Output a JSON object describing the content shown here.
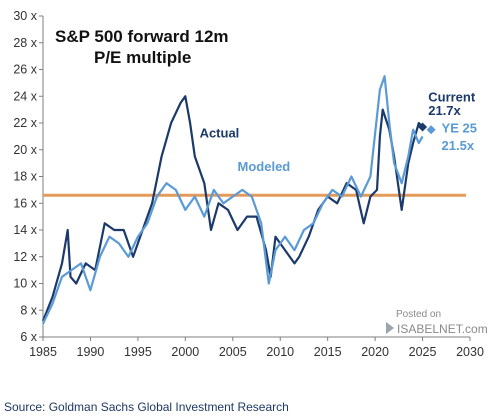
{
  "chart_data": {
    "type": "line",
    "title": [
      "S&P 500 forward 12m",
      "P/E multiple"
    ],
    "x_ticks": [
      "1985",
      "1990",
      "1995",
      "2000",
      "2005",
      "2010",
      "2015",
      "2020",
      "2025",
      "2030"
    ],
    "y_ticks": [
      "6 x",
      "8 x",
      "10 x",
      "12 x",
      "14 x",
      "16 x",
      "18 x",
      "20 x",
      "22 x",
      "24 x",
      "26 x",
      "28 x",
      "30 x"
    ],
    "xlim": [
      1985,
      2030
    ],
    "ylim": [
      6,
      30
    ],
    "grid": false,
    "horizontal_line": {
      "y": 16.6,
      "color": "#E39A5B"
    },
    "series": [
      {
        "name": "Actual",
        "color": "#1B3A6B",
        "points": [
          [
            1985.0,
            7.2
          ],
          [
            1986.0,
            9.0
          ],
          [
            1987.0,
            11.5
          ],
          [
            1987.6,
            14.0
          ],
          [
            1987.9,
            10.5
          ],
          [
            1988.5,
            10.0
          ],
          [
            1989.5,
            11.5
          ],
          [
            1990.5,
            11.0
          ],
          [
            1991.5,
            14.5
          ],
          [
            1992.5,
            14.0
          ],
          [
            1993.5,
            14.0
          ],
          [
            1994.5,
            12.0
          ],
          [
            1995.5,
            14.0
          ],
          [
            1996.5,
            16.0
          ],
          [
            1997.5,
            19.5
          ],
          [
            1998.5,
            22.0
          ],
          [
            1999.5,
            23.5
          ],
          [
            2000.0,
            24.0
          ],
          [
            2000.5,
            22.0
          ],
          [
            2001.0,
            19.5
          ],
          [
            2002.0,
            17.5
          ],
          [
            2002.7,
            14.0
          ],
          [
            2003.5,
            16.0
          ],
          [
            2004.5,
            15.5
          ],
          [
            2005.5,
            14.0
          ],
          [
            2006.5,
            15.0
          ],
          [
            2007.5,
            15.0
          ],
          [
            2008.5,
            12.5
          ],
          [
            2009.0,
            10.5
          ],
          [
            2009.5,
            13.5
          ],
          [
            2010.5,
            12.5
          ],
          [
            2011.5,
            11.5
          ],
          [
            2012.0,
            12.0
          ],
          [
            2013.0,
            13.5
          ],
          [
            2014.0,
            15.5
          ],
          [
            2015.0,
            16.5
          ],
          [
            2016.0,
            16.0
          ],
          [
            2017.0,
            17.5
          ],
          [
            2018.0,
            17.0
          ],
          [
            2018.8,
            14.5
          ],
          [
            2019.5,
            16.5
          ],
          [
            2020.2,
            17.0
          ],
          [
            2020.5,
            21.0
          ],
          [
            2020.8,
            23.0
          ],
          [
            2021.5,
            21.5
          ],
          [
            2022.0,
            19.5
          ],
          [
            2022.8,
            15.5
          ],
          [
            2023.5,
            19.0
          ],
          [
            2024.0,
            20.5
          ],
          [
            2024.6,
            22.0
          ],
          [
            2025.0,
            21.7
          ]
        ]
      },
      {
        "name": "Modeled",
        "color": "#5A9AD5",
        "points": [
          [
            1985.0,
            7.0
          ],
          [
            1986.0,
            8.5
          ],
          [
            1987.0,
            10.5
          ],
          [
            1988.0,
            11.0
          ],
          [
            1989.0,
            11.5
          ],
          [
            1990.0,
            9.5
          ],
          [
            1991.0,
            12.0
          ],
          [
            1992.0,
            13.5
          ],
          [
            1993.0,
            13.0
          ],
          [
            1994.0,
            12.0
          ],
          [
            1995.0,
            13.5
          ],
          [
            1996.0,
            14.5
          ],
          [
            1997.0,
            16.5
          ],
          [
            1998.0,
            17.5
          ],
          [
            1999.0,
            17.0
          ],
          [
            2000.0,
            15.5
          ],
          [
            2001.0,
            16.5
          ],
          [
            2002.0,
            15.0
          ],
          [
            2003.0,
            17.0
          ],
          [
            2004.0,
            16.0
          ],
          [
            2005.0,
            16.5
          ],
          [
            2006.0,
            17.0
          ],
          [
            2007.0,
            16.5
          ],
          [
            2008.0,
            14.5
          ],
          [
            2008.8,
            10.0
          ],
          [
            2009.5,
            12.5
          ],
          [
            2010.5,
            13.5
          ],
          [
            2011.5,
            12.5
          ],
          [
            2012.5,
            14.0
          ],
          [
            2013.5,
            14.5
          ],
          [
            2014.5,
            16.0
          ],
          [
            2015.5,
            17.0
          ],
          [
            2016.5,
            16.5
          ],
          [
            2017.5,
            18.0
          ],
          [
            2018.5,
            16.5
          ],
          [
            2019.5,
            18.0
          ],
          [
            2020.5,
            24.5
          ],
          [
            2021.0,
            25.5
          ],
          [
            2021.5,
            22.0
          ],
          [
            2022.0,
            19.0
          ],
          [
            2022.8,
            17.5
          ],
          [
            2023.5,
            19.5
          ],
          [
            2024.0,
            21.5
          ],
          [
            2024.6,
            20.5
          ],
          [
            2025.0,
            21.0
          ]
        ]
      }
    ],
    "annotations": [
      {
        "id": "actual",
        "text": "Actual",
        "color": "#1B3A6B",
        "x": 2001.5,
        "y": 20.9
      },
      {
        "id": "modeled",
        "text": "Modeled",
        "color": "#5A9AD5",
        "x": 2005.5,
        "y": 18.4
      },
      {
        "id": "current",
        "text": "Current",
        "color": "#1B3A6B",
        "x": 2025.6,
        "y": 23.6
      },
      {
        "id": "current-value",
        "text": "21.7x",
        "color": "#1B3A6B",
        "x": 2025.6,
        "y": 22.6
      },
      {
        "id": "ye25",
        "text": "YE 25",
        "color": "#5A9AD5",
        "x": 2027.0,
        "y": 21.3
      },
      {
        "id": "ye25-value",
        "text": "21.5x",
        "color": "#5A9AD5",
        "x": 2027.0,
        "y": 20.0
      }
    ],
    "markers": [
      {
        "id": "current-marker",
        "x": 2025.0,
        "y": 21.7,
        "color": "#1B3A6B"
      },
      {
        "id": "ye25-marker",
        "x": 2025.9,
        "y": 21.5,
        "color": "#5A9AD5"
      }
    ]
  },
  "watermark": {
    "line1": "Posted on",
    "line2": "ISABELNET.com"
  },
  "source": "Source: Goldman Sachs Global Investment Research"
}
